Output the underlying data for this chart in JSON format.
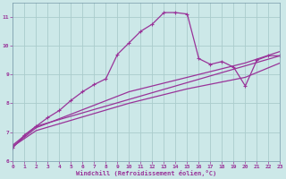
{
  "xlabel": "Windchill (Refroidissement éolien,°C)",
  "background_color": "#cce8e8",
  "grid_color": "#aacccc",
  "line_color": "#993399",
  "xlim": [
    0,
    23
  ],
  "ylim": [
    6,
    11.5
  ],
  "yticks": [
    6,
    7,
    8,
    9,
    10,
    11
  ],
  "xticks": [
    0,
    1,
    2,
    3,
    4,
    5,
    6,
    7,
    8,
    9,
    10,
    11,
    12,
    13,
    14,
    15,
    16,
    17,
    18,
    19,
    20,
    21,
    22,
    23
  ],
  "line1_x": [
    0,
    1,
    2,
    3,
    4,
    5,
    6,
    7,
    8,
    9,
    10,
    11,
    12,
    13,
    14,
    15,
    16,
    17,
    18,
    19,
    20,
    21,
    22,
    23
  ],
  "line1_y": [
    6.45,
    6.9,
    7.2,
    7.5,
    7.75,
    8.1,
    8.4,
    8.65,
    8.85,
    9.7,
    10.1,
    10.5,
    10.75,
    11.15,
    11.15,
    11.1,
    9.55,
    9.35,
    9.45,
    9.25,
    8.6,
    9.5,
    9.65,
    9.65
  ],
  "line2_x": [
    0,
    2,
    23
  ],
  "line2_y": [
    6.55,
    7.2,
    9.65
  ],
  "line3_x": [
    0,
    2,
    10,
    15,
    20,
    23
  ],
  "line3_y": [
    6.5,
    7.15,
    8.4,
    8.9,
    9.4,
    9.8
  ],
  "line4_x": [
    0,
    2,
    10,
    15,
    20,
    23
  ],
  "line4_y": [
    6.5,
    7.05,
    8.0,
    8.5,
    8.9,
    9.4
  ]
}
